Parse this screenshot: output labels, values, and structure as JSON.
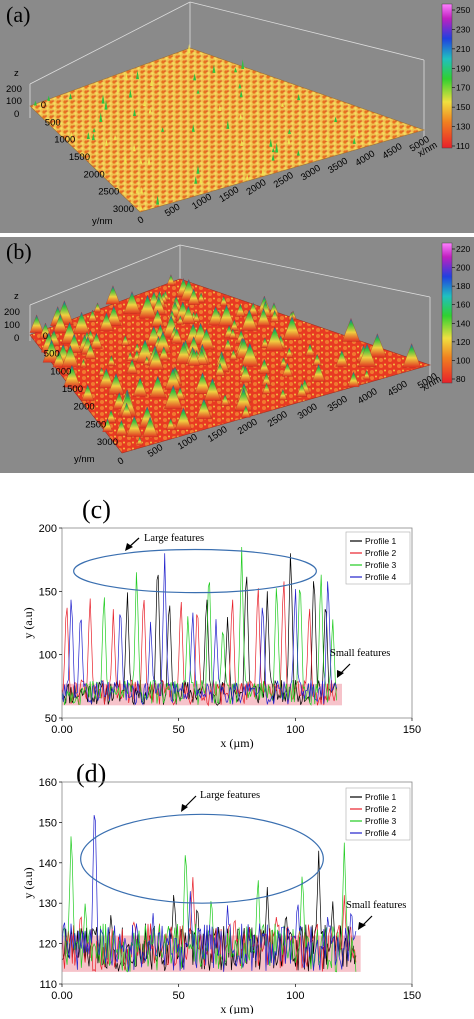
{
  "panels_3d": [
    {
      "label": "(a)",
      "z_axis_label": "z",
      "z_ticks": [
        "200",
        "100",
        "0"
      ],
      "y_axis_label": "y/nm",
      "y_ticks": [
        "0",
        "500",
        "1000",
        "1500",
        "2000",
        "2500",
        "3000"
      ],
      "x_axis_label": "x/nm",
      "x_ticks": [
        "0",
        "500",
        "1000",
        "1500",
        "2000",
        "2500",
        "3000",
        "3500",
        "4000",
        "4500",
        "5000"
      ],
      "colorbar_ticks": [
        "250",
        "230",
        "210",
        "190",
        "170",
        "150",
        "130",
        "110"
      ],
      "colorbar_range": [
        110,
        250
      ],
      "surface_style": "dense small bumps"
    },
    {
      "label": "(b)",
      "z_axis_label": "z",
      "z_ticks": [
        "200",
        "100",
        "0"
      ],
      "y_axis_label": "y/nm",
      "y_ticks": [
        "0",
        "500",
        "1000",
        "1500",
        "2000",
        "2500",
        "3000"
      ],
      "x_axis_label": "x/nm",
      "x_ticks": [
        "0",
        "500",
        "1000",
        "1500",
        "2000",
        "2500",
        "3000",
        "3500",
        "4000",
        "4500",
        "5000"
      ],
      "colorbar_ticks": [
        "220",
        "200",
        "180",
        "160",
        "140",
        "120",
        "100",
        "80"
      ],
      "colorbar_range": [
        80,
        220
      ],
      "surface_style": "sparse conical peaks"
    }
  ],
  "colors": {
    "panel_background": "#8a8a8a",
    "profile_1": "#000000",
    "profile_2": "#e8202a",
    "profile_3": "#22cc22",
    "profile_4": "#2222cc",
    "ellipse": "#3a6fb0",
    "small_feature_band": "#f4b9c1"
  },
  "chart_data": [
    {
      "type": "line",
      "label": "(c)",
      "xlabel": "x (µm)",
      "ylabel": "y (a.u)",
      "xlim": [
        0,
        150
      ],
      "ylim": [
        50,
        200
      ],
      "xticks": [
        "0.00",
        "50",
        "100",
        "150"
      ],
      "yticks": [
        "50",
        "100",
        "150",
        "200"
      ],
      "x_range_data": [
        0,
        118
      ],
      "baseline": [
        60,
        80
      ],
      "legend": [
        "Profile 1",
        "Profile 2",
        "Profile 3",
        "Profile 4"
      ],
      "legend_position": "top-right",
      "annotations": {
        "large": "Large features",
        "small": "Small features"
      },
      "large_region": {
        "x_center": 57,
        "y_center": 166,
        "x_half_width": 52,
        "y_half_height": 17
      },
      "small_band": {
        "x": [
          0,
          120
        ],
        "y": [
          60,
          77
        ]
      },
      "series": [
        {
          "name": "Profile 1",
          "peaks": [
            [
              28,
              152
            ],
            [
              41,
              182
            ],
            [
              46,
              150
            ],
            [
              62,
              152
            ],
            [
              71,
              132
            ],
            [
              79,
              176
            ],
            [
              88,
              150
            ],
            [
              98,
              188
            ],
            [
              108,
              172
            ],
            [
              113,
              150
            ]
          ]
        },
        {
          "name": "Profile 2",
          "peaks": [
            [
              2,
              148
            ],
            [
              12,
              150
            ],
            [
              22,
              136
            ],
            [
              35,
              155
            ],
            [
              51,
              150
            ],
            [
              58,
              145
            ],
            [
              73,
              152
            ],
            [
              84,
              162
            ],
            [
              95,
              168
            ],
            [
              106,
              144
            ]
          ]
        },
        {
          "name": "Profile 3",
          "peaks": [
            [
              18,
              154
            ],
            [
              32,
              172
            ],
            [
              54,
              135
            ],
            [
              63,
              175
            ],
            [
              69,
              128
            ],
            [
              77,
              185
            ],
            [
              92,
              162
            ],
            [
              102,
              168
            ],
            [
              111,
              170
            ],
            [
              116,
              130
            ]
          ]
        },
        {
          "name": "Profile 4",
          "peaks": [
            [
              4,
              152
            ],
            [
              8,
              140
            ],
            [
              25,
              145
            ],
            [
              38,
              128
            ],
            [
              44,
              180
            ],
            [
              56,
              138
            ],
            [
              66,
              128
            ],
            [
              86,
              148
            ],
            [
              100,
              158
            ],
            [
              114,
              168
            ]
          ]
        }
      ]
    },
    {
      "type": "line",
      "label": "(d)",
      "xlabel": "x (µm)",
      "ylabel": "y (a.u)",
      "xlim": [
        0,
        150
      ],
      "ylim": [
        110,
        160
      ],
      "xticks": [
        "0.00",
        "50",
        "100",
        "150"
      ],
      "yticks": [
        "110",
        "120",
        "130",
        "140",
        "150",
        "160"
      ],
      "x_range_data": [
        0,
        126
      ],
      "baseline": [
        113,
        125
      ],
      "legend": [
        "Profile 1",
        "Profile 2",
        "Profile 3",
        "Profile 4"
      ],
      "legend_position": "top-right",
      "annotations": {
        "large": "Large features",
        "small": "Small features"
      },
      "large_region": {
        "x_center": 60,
        "y_center": 141,
        "x_half_width": 52,
        "y_half_height": 11
      },
      "small_band": {
        "x": [
          0,
          128
        ],
        "y": [
          113,
          122
        ]
      },
      "series": [
        {
          "name": "Profile 1",
          "peaks": [
            [
              21,
              128
            ],
            [
              48,
              134
            ],
            [
              58,
              131
            ],
            [
              88,
              134
            ],
            [
              96,
              129
            ],
            [
              110,
              143
            ],
            [
              116,
              131
            ]
          ]
        },
        {
          "name": "Profile 2",
          "peaks": [
            [
              8,
              129
            ],
            [
              31,
              127
            ],
            [
              56,
              138
            ],
            [
              74,
              128
            ],
            [
              92,
              128
            ],
            [
              121,
              132
            ]
          ]
        },
        {
          "name": "Profile 3",
          "peaks": [
            [
              4,
              150
            ],
            [
              10,
              131
            ],
            [
              53,
              146
            ],
            [
              64,
              133
            ],
            [
              84,
              138
            ],
            [
              103,
              139
            ],
            [
              121,
              145
            ]
          ]
        },
        {
          "name": "Profile 4",
          "peaks": [
            [
              1,
              126
            ],
            [
              14,
              159
            ],
            [
              39,
              128
            ],
            [
              55,
              133
            ],
            [
              71,
              130
            ],
            [
              101,
              132
            ],
            [
              114,
              128
            ],
            [
              124,
              130
            ]
          ]
        }
      ]
    }
  ]
}
